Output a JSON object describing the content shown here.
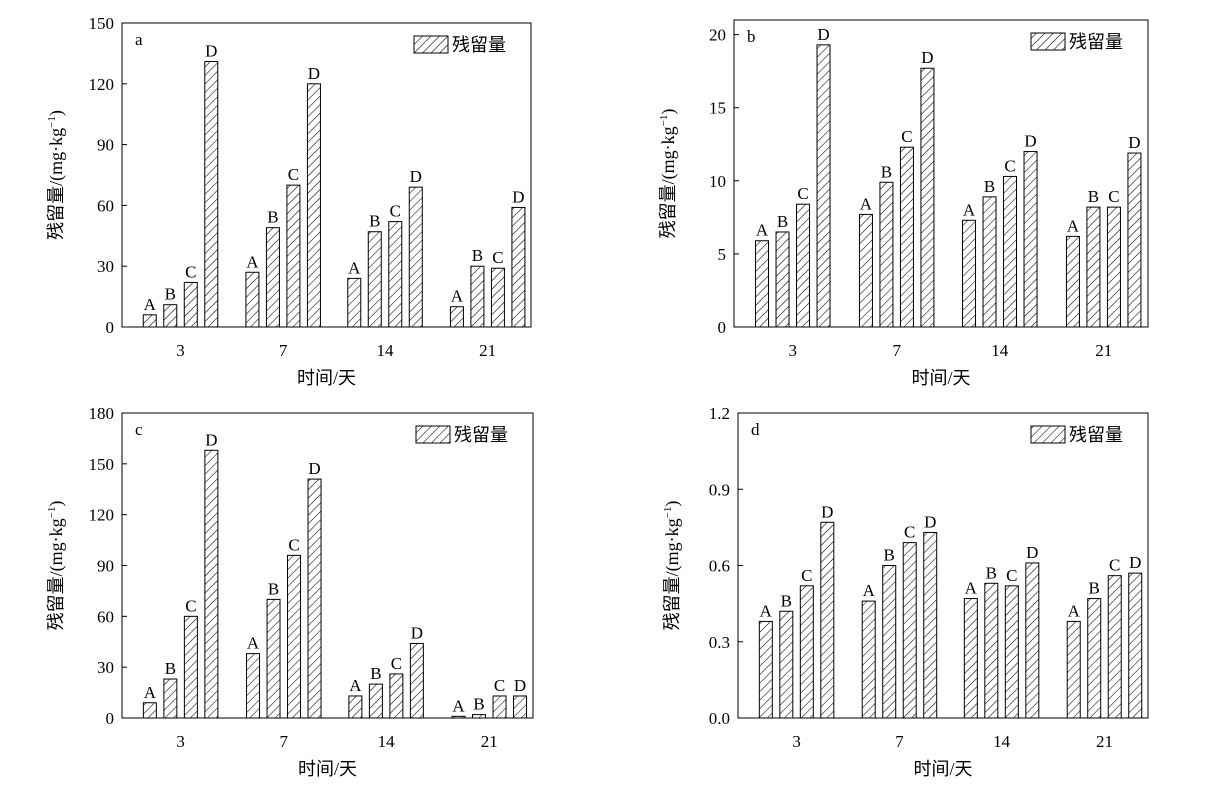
{
  "chart_data": [
    {
      "panel_label": "a",
      "type": "bar",
      "categories": [
        "3",
        "7",
        "14",
        "21"
      ],
      "bar_letters": [
        "A",
        "B",
        "C",
        "D"
      ],
      "values": [
        [
          6,
          11,
          22,
          131
        ],
        [
          27,
          49,
          70,
          120
        ],
        [
          24,
          47,
          52,
          69
        ],
        [
          10,
          30,
          29,
          59
        ]
      ],
      "xlabel": "时间/天",
      "ylabel": "残留量/(mg·kg",
      "ylabel_sup": "−1",
      "ylabel_end": ")",
      "legend": "残留量",
      "ylim": [
        0,
        150
      ],
      "yticks": [
        "0",
        "30",
        "60",
        "90",
        "120",
        "150"
      ],
      "legend_position": "top-right",
      "grid": false
    },
    {
      "panel_label": "b",
      "type": "bar",
      "categories": [
        "3",
        "7",
        "14",
        "21"
      ],
      "bar_letters": [
        "A",
        "B",
        "C",
        "D"
      ],
      "values": [
        [
          5.9,
          6.5,
          8.4,
          19.3
        ],
        [
          7.7,
          9.9,
          12.3,
          17.7
        ],
        [
          7.3,
          8.9,
          10.3,
          12.0
        ],
        [
          6.2,
          8.2,
          8.2,
          11.9
        ]
      ],
      "xlabel": "时间/天",
      "ylabel": "残留量/(mg·kg",
      "ylabel_sup": "−1",
      "ylabel_end": ")",
      "legend": "残留量",
      "ylim": [
        0,
        21
      ],
      "yticks": [
        "0",
        "5",
        "10",
        "15",
        "20"
      ],
      "legend_position": "top-right",
      "grid": false
    },
    {
      "panel_label": "c",
      "type": "bar",
      "categories": [
        "3",
        "7",
        "14",
        "21"
      ],
      "bar_letters": [
        "A",
        "B",
        "C",
        "D"
      ],
      "values": [
        [
          9,
          23,
          60,
          158
        ],
        [
          38,
          70,
          96,
          141
        ],
        [
          13,
          20,
          26,
          44
        ],
        [
          1,
          2,
          13,
          13
        ]
      ],
      "xlabel": "时间/天",
      "ylabel": "残留量/(mg·kg",
      "ylabel_sup": "−1",
      "ylabel_end": ")",
      "legend": "残留量",
      "ylim": [
        0,
        180
      ],
      "yticks": [
        "0",
        "30",
        "60",
        "90",
        "120",
        "150",
        "180"
      ],
      "legend_position": "top-right",
      "grid": false
    },
    {
      "panel_label": "d",
      "type": "bar",
      "categories": [
        "3",
        "7",
        "14",
        "21"
      ],
      "bar_letters": [
        "A",
        "B",
        "C",
        "D"
      ],
      "values": [
        [
          0.38,
          0.42,
          0.52,
          0.77
        ],
        [
          0.46,
          0.6,
          0.69,
          0.73
        ],
        [
          0.47,
          0.53,
          0.52,
          0.61
        ],
        [
          0.38,
          0.47,
          0.56,
          0.57
        ]
      ],
      "xlabel": "时间/天",
      "ylabel": "残留量/(mg·kg",
      "ylabel_sup": "−1",
      "ylabel_end": ")",
      "legend": "残留量",
      "ylim": [
        0,
        1.2
      ],
      "yticks": [
        "0.0",
        "0.3",
        "0.6",
        "0.9",
        "1.2"
      ],
      "legend_position": "top-right",
      "grid": false
    }
  ]
}
